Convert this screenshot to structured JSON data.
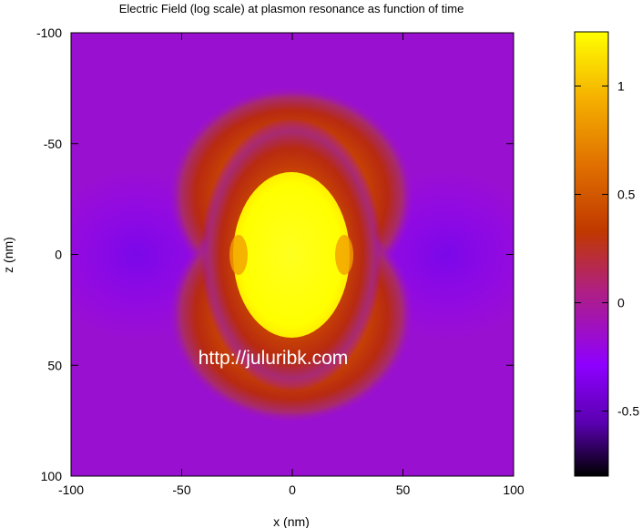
{
  "chart_data": {
    "type": "heatmap",
    "title": "Electric Field (log scale) at plasmon resonance as function of time",
    "xlabel": "x (nm)",
    "ylabel": "z (nm)",
    "xlim": [
      -100,
      100
    ],
    "ylim": [
      -100,
      100
    ],
    "y_axis_direction": "top-to-bottom increasing",
    "x_ticks": [
      -100,
      -50,
      0,
      50,
      100
    ],
    "y_ticks": [
      -100,
      -50,
      0,
      50,
      100
    ],
    "colorbar": {
      "range": [
        -0.8,
        1.25
      ],
      "ticks": [
        -0.5,
        0,
        0.5,
        1
      ],
      "palette": [
        "#000000",
        "#5a00b0",
        "#8e00ff",
        "#b02080",
        "#c03800",
        "#e07000",
        "#f5b000",
        "#ffff00"
      ]
    },
    "field_description": {
      "background_value": -0.1,
      "particle_region": {
        "x_center": 0,
        "z_center": 0,
        "radius_x": 26,
        "radius_z": 37,
        "value": 1.2
      },
      "near_field_lobes_along": "z",
      "max_value": 1.25
    },
    "watermark": "http://juluribk.com"
  }
}
